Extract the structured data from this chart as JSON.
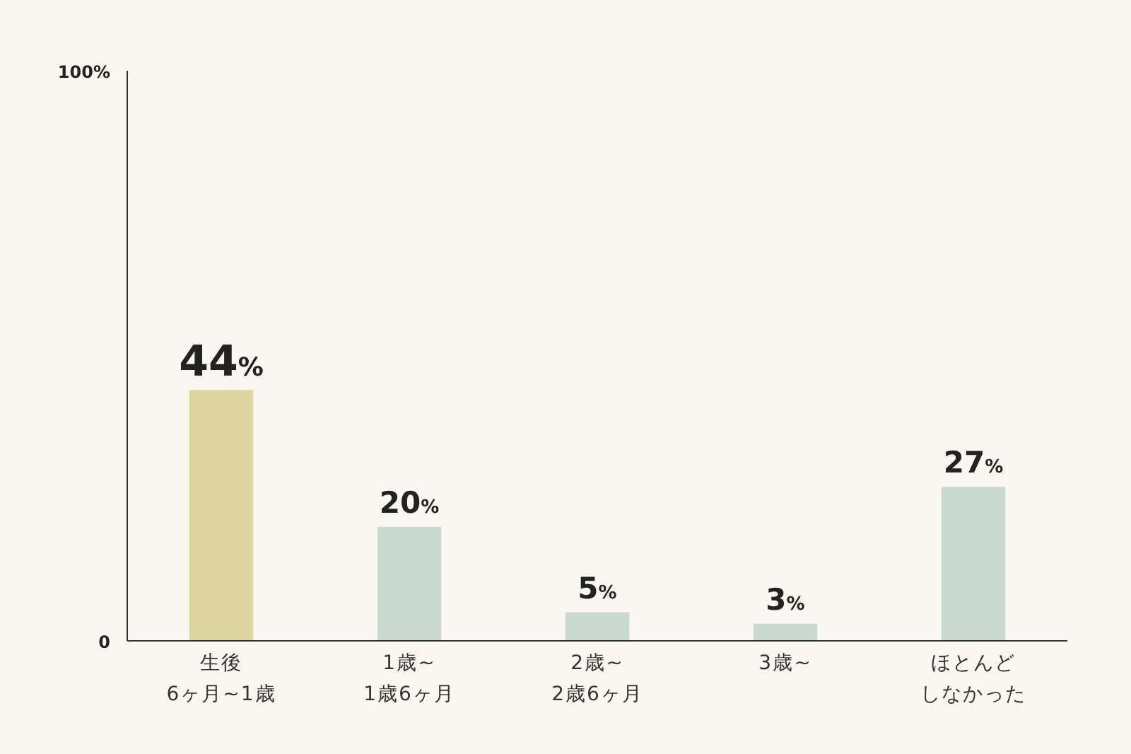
{
  "chart_data": {
    "type": "bar",
    "categories": [
      "生後\n6ヶ月~1歳",
      "1歳~\n1歳6ヶ月",
      "2歳~\n2歳6ヶ月",
      "3歳~",
      "ほとんどしなかった"
    ],
    "values": [
      44,
      20,
      5,
      3,
      27
    ],
    "colors": [
      "#ded5a0",
      "#c9d9d0",
      "#c9d9d0",
      "#c9d9d0",
      "#c9d9d0"
    ],
    "value_labels": [
      "44%",
      "20%",
      "5%",
      "3%",
      "27%"
    ],
    "ylim": [
      0,
      100
    ],
    "yticks": [
      0,
      {
        "value": 100,
        "label": "100%"
      }
    ],
    "grid": false
  }
}
